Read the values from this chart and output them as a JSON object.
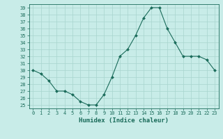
{
  "xlabel": "Humidex (Indice chaleur)",
  "ylabel": "",
  "x_values": [
    0,
    1,
    2,
    3,
    4,
    5,
    6,
    7,
    8,
    9,
    10,
    11,
    12,
    13,
    14,
    15,
    16,
    17,
    18,
    19,
    20,
    21,
    22,
    23
  ],
  "y_values": [
    30,
    29.5,
    28.5,
    27,
    27,
    26.5,
    25.5,
    25,
    25,
    26.5,
    29,
    32,
    33,
    35,
    37.5,
    39,
    39,
    36,
    34,
    32,
    32,
    32,
    31.5,
    30
  ],
  "ylim": [
    25,
    39
  ],
  "xlim": [
    -0.5,
    23.5
  ],
  "y_ticks": [
    25,
    26,
    27,
    28,
    29,
    30,
    31,
    32,
    33,
    34,
    35,
    36,
    37,
    38,
    39
  ],
  "x_ticks": [
    0,
    1,
    2,
    3,
    4,
    5,
    6,
    7,
    8,
    9,
    10,
    11,
    12,
    13,
    14,
    15,
    16,
    17,
    18,
    19,
    20,
    21,
    22,
    23
  ],
  "line_color": "#1a6b5a",
  "marker": "D",
  "marker_size": 2.0,
  "bg_color": "#c8ece8",
  "grid_color": "#a8d4ce",
  "tick_color": "#1a6b5a",
  "label_color": "#1a6b5a",
  "font_family": "monospace",
  "tick_fontsize": 5.0,
  "label_fontsize": 6.5
}
